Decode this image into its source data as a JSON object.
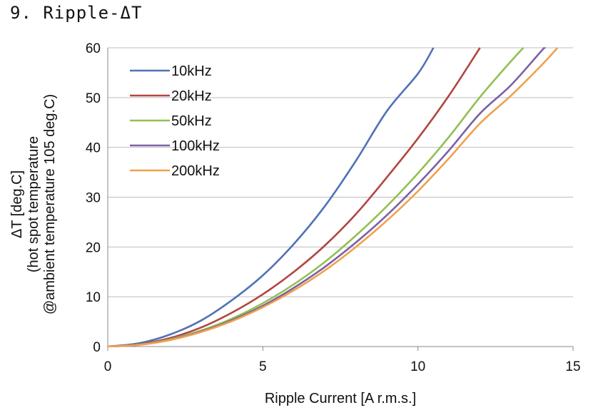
{
  "title": "9. Ripple-ΔT",
  "chart_data": {
    "type": "line",
    "xlabel": "Ripple Current  [A r.m.s.]",
    "ylabel_lines": [
      "ΔT [deg.C]",
      "(hot spot temperature",
      "@ambient temperature 105 deg.C)"
    ],
    "xlim": [
      0,
      15
    ],
    "ylim": [
      0,
      60
    ],
    "xticks": [
      0,
      5,
      10,
      15
    ],
    "yticks": [
      0,
      10,
      20,
      30,
      40,
      50,
      60
    ],
    "grid": "horizontal",
    "legend_position": "top-left",
    "series": [
      {
        "name": "10kHz",
        "color": "#4f72b8",
        "x": [
          0,
          1,
          2,
          3,
          4,
          5,
          6,
          7,
          8,
          9,
          10,
          10.5
        ],
        "y": [
          0,
          0.65,
          2.4,
          5.2,
          9.3,
          14.3,
          20.6,
          28.2,
          37.3,
          47.3,
          54.8,
          60
        ]
      },
      {
        "name": "20kHz",
        "color": "#b0463f",
        "x": [
          0,
          1,
          2,
          3,
          4,
          5,
          6,
          7,
          8,
          9,
          10,
          11,
          12
        ],
        "y": [
          0,
          0.45,
          1.7,
          3.8,
          6.8,
          10.5,
          15.0,
          20.3,
          26.6,
          34.0,
          41.8,
          50.4,
          60
        ]
      },
      {
        "name": "50kHz",
        "color": "#93c054",
        "x": [
          0,
          1,
          2,
          3,
          4,
          5,
          6,
          7,
          8,
          9,
          10,
          11,
          12,
          13,
          13.4
        ],
        "y": [
          0,
          0.38,
          1.45,
          3.2,
          5.6,
          8.7,
          12.5,
          17.0,
          22.3,
          28.2,
          34.8,
          42.1,
          50.1,
          57.3,
          60
        ]
      },
      {
        "name": "100kHz",
        "color": "#7b60a6",
        "x": [
          0,
          1,
          2,
          3,
          4,
          5,
          6,
          7,
          8,
          9,
          10,
          11,
          12,
          13,
          14,
          14.1
        ],
        "y": [
          0,
          0.35,
          1.35,
          3.0,
          5.3,
          8.2,
          11.8,
          16.0,
          20.9,
          26.4,
          32.6,
          39.4,
          46.8,
          52.5,
          59.5,
          60
        ]
      },
      {
        "name": "200kHz",
        "color": "#f0a04b",
        "x": [
          0,
          1,
          2,
          3,
          4,
          5,
          6,
          7,
          8,
          9,
          10,
          11,
          12,
          13,
          14,
          14.5
        ],
        "y": [
          0,
          0.33,
          1.3,
          2.9,
          5.1,
          7.9,
          11.3,
          15.3,
          20.0,
          25.3,
          31.2,
          37.8,
          44.8,
          50.4,
          56.6,
          60
        ]
      }
    ]
  }
}
